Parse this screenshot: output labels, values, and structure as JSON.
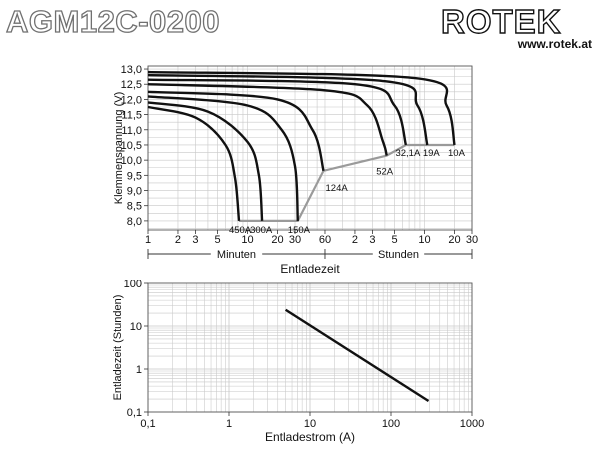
{
  "header": {
    "title": "AGM12C-0200",
    "logo_text": "ROTEK",
    "logo_url": "www.rotek.at"
  },
  "colors": {
    "curve": "#111111",
    "cutoff_line": "#9a9a9a",
    "grid": "#c8c8c8",
    "title_outline": "#707070"
  },
  "chart_data": [
    {
      "type": "line",
      "ylabel": "Klemmenspannung (V)",
      "xlabel": "Entladezeit",
      "x_scale": "log",
      "x_range_minutes": [
        1,
        1800
      ],
      "ylim": [
        7.7,
        13.1
      ],
      "grid": true,
      "y_ticks": [
        "8,0",
        "8,5",
        "9,0",
        "9,5",
        "10,0",
        "10,5",
        "11,0",
        "11,5",
        "12,0",
        "12,5",
        "13,0"
      ],
      "y_tick_values": [
        8.0,
        8.5,
        9.0,
        9.5,
        10.0,
        10.5,
        11.0,
        11.5,
        12.0,
        12.5,
        13.0
      ],
      "x_ticks": [
        {
          "label": "1",
          "minutes": 1
        },
        {
          "label": "2",
          "minutes": 2
        },
        {
          "label": "3",
          "minutes": 3
        },
        {
          "label": "5",
          "minutes": 5
        },
        {
          "label": "10",
          "minutes": 10
        },
        {
          "label": "20",
          "minutes": 20
        },
        {
          "label": "30",
          "minutes": 30
        },
        {
          "label": "60",
          "minutes": 60
        },
        {
          "label": "2",
          "minutes": 120
        },
        {
          "label": "3",
          "minutes": 180
        },
        {
          "label": "5",
          "minutes": 300
        },
        {
          "label": "10",
          "minutes": 600
        },
        {
          "label": "20",
          "minutes": 1200
        },
        {
          "label": "30",
          "minutes": 1800
        }
      ],
      "ranges": [
        {
          "label": "Minuten",
          "from_minutes": 1,
          "to_minutes": 60
        },
        {
          "label": "Stunden",
          "from_minutes": 60,
          "to_minutes": 1800
        }
      ],
      "series": [
        {
          "name": "450A",
          "points": [
            [
              1,
              11.75
            ],
            [
              3,
              11.4
            ],
            [
              6,
              10.5
            ],
            [
              7.5,
              9.4
            ],
            [
              8.2,
              8.0
            ]
          ]
        },
        {
          "name": "300A",
          "points": [
            [
              1,
              11.9
            ],
            [
              4,
              11.6
            ],
            [
              10,
              10.6
            ],
            [
              13,
              9.5
            ],
            [
              14,
              8.0
            ]
          ]
        },
        {
          "name": "150A",
          "points": [
            [
              1,
              12.1
            ],
            [
              10,
              11.8
            ],
            [
              22,
              11.0
            ],
            [
              30,
              9.8
            ],
            [
              32,
              8.0
            ]
          ]
        },
        {
          "name": "124A",
          "points": [
            [
              1,
              12.25
            ],
            [
              20,
              12.0
            ],
            [
              45,
              11.0
            ],
            [
              58,
              9.65
            ]
          ]
        },
        {
          "name": "52A",
          "points": [
            [
              1,
              12.5
            ],
            [
              60,
              12.3
            ],
            [
              160,
              11.8
            ],
            [
              230,
              10.6
            ],
            [
              250,
              10.15
            ]
          ]
        },
        {
          "name": "32,1A",
          "points": [
            [
              1,
              12.65
            ],
            [
              120,
              12.5
            ],
            [
              300,
              11.8
            ],
            [
              390,
              10.5
            ]
          ]
        },
        {
          "name": "19A",
          "points": [
            [
              1,
              12.8
            ],
            [
              240,
              12.6
            ],
            [
              510,
              11.8
            ],
            [
              640,
              10.5
            ]
          ]
        },
        {
          "name": "10A",
          "points": [
            [
              1,
              12.9
            ],
            [
              480,
              12.7
            ],
            [
              1000,
              11.8
            ],
            [
              1200,
              10.5
            ]
          ]
        }
      ],
      "cutoff": {
        "points": [
          [
            8.2,
            8.0
          ],
          [
            32,
            8.0
          ],
          [
            58,
            9.65
          ],
          [
            250,
            10.15
          ],
          [
            390,
            10.5
          ],
          [
            1200,
            10.5
          ]
        ]
      }
    },
    {
      "type": "line",
      "xlabel": "Entladestrom (A)",
      "ylabel": "Entladezeit (Stunden)",
      "x_scale": "log",
      "y_scale": "log",
      "xlim": [
        0.1,
        1000
      ],
      "ylim": [
        0.1,
        100
      ],
      "grid": true,
      "x_ticks": [
        {
          "label": "0,1",
          "value": 0.1
        },
        {
          "label": "1",
          "value": 1
        },
        {
          "label": "10",
          "value": 10
        },
        {
          "label": "100",
          "value": 100
        },
        {
          "label": "1000",
          "value": 1000
        }
      ],
      "y_ticks": [
        {
          "label": "0,1",
          "value": 0.1
        },
        {
          "label": "1",
          "value": 1
        },
        {
          "label": "10",
          "value": 10
        },
        {
          "label": "100",
          "value": 100
        }
      ],
      "series": [
        {
          "points": [
            [
              5,
              24
            ],
            [
              290,
              0.18
            ]
          ]
        }
      ]
    }
  ]
}
